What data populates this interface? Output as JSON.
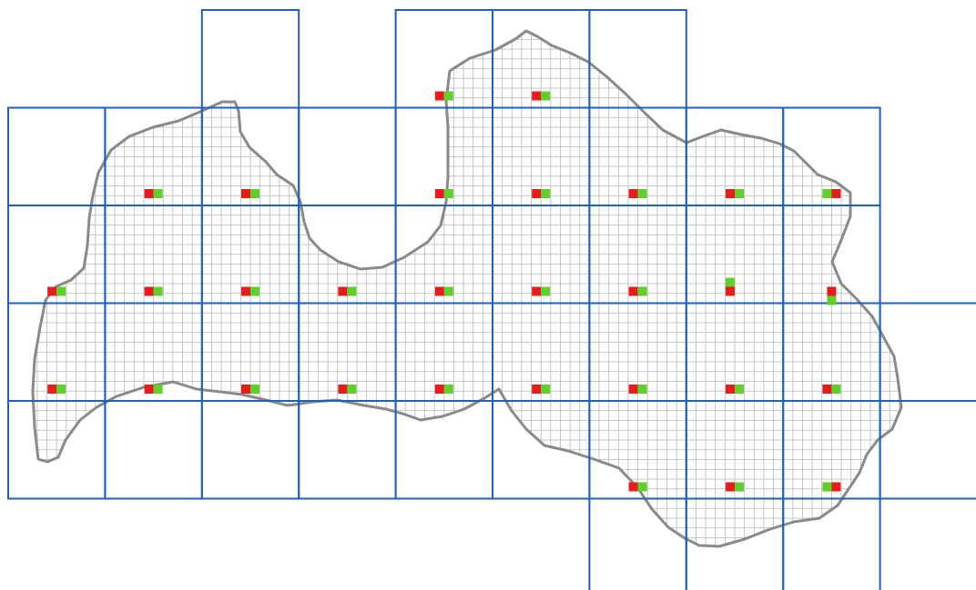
{
  "map": {
    "region": "Latvia",
    "coarse_grid": {
      "color": "#1f5fbf",
      "cells": [
        [
          2,
          0
        ],
        [
          4,
          0
        ],
        [
          5,
          0
        ],
        [
          6,
          0
        ],
        [
          0,
          1
        ],
        [
          1,
          1
        ],
        [
          2,
          1
        ],
        [
          3,
          1
        ],
        [
          4,
          1
        ],
        [
          5,
          1
        ],
        [
          6,
          1
        ],
        [
          7,
          1
        ],
        [
          8,
          1
        ],
        [
          0,
          2
        ],
        [
          1,
          2
        ],
        [
          2,
          2
        ],
        [
          3,
          2
        ],
        [
          4,
          2
        ],
        [
          5,
          2
        ],
        [
          6,
          2
        ],
        [
          7,
          2
        ],
        [
          8,
          2
        ],
        [
          0,
          3
        ],
        [
          1,
          3
        ],
        [
          2,
          3
        ],
        [
          3,
          3
        ],
        [
          4,
          3
        ],
        [
          5,
          3
        ],
        [
          6,
          3
        ],
        [
          7,
          3
        ],
        [
          8,
          3
        ],
        [
          9,
          3
        ],
        [
          0,
          4
        ],
        [
          1,
          4
        ],
        [
          2,
          4
        ],
        [
          3,
          4
        ],
        [
          4,
          4
        ],
        [
          5,
          4
        ],
        [
          6,
          4
        ],
        [
          7,
          4
        ],
        [
          8,
          4
        ],
        [
          9,
          4
        ],
        [
          6,
          5
        ],
        [
          7,
          5
        ],
        [
          8,
          5
        ]
      ]
    },
    "fine_grid": {
      "color": "#b8b8b8",
      "subdivisions_per_cell": 10
    },
    "boundary": {
      "color": "#8a8a8a"
    },
    "marker_colors": {
      "red": "#e81c1c",
      "green": "#5fd02a"
    },
    "markers": [
      {
        "id": "m-4-0",
        "col": 4,
        "row": 0,
        "layout": "red-left"
      },
      {
        "id": "m-5-0",
        "col": 5,
        "row": 0,
        "layout": "red-left"
      },
      {
        "id": "m-1-1",
        "col": 1,
        "row": 1,
        "layout": "red-left"
      },
      {
        "id": "m-2-1",
        "col": 2,
        "row": 1,
        "layout": "red-left"
      },
      {
        "id": "m-4-1",
        "col": 4,
        "row": 1,
        "layout": "red-left"
      },
      {
        "id": "m-5-1",
        "col": 5,
        "row": 1,
        "layout": "red-left"
      },
      {
        "id": "m-6-1",
        "col": 6,
        "row": 1,
        "layout": "red-left"
      },
      {
        "id": "m-7-1",
        "col": 7,
        "row": 1,
        "layout": "red-left"
      },
      {
        "id": "m-8-1",
        "col": 8,
        "row": 1,
        "layout": "green-left"
      },
      {
        "id": "m-0-2",
        "col": 0,
        "row": 2,
        "layout": "red-left"
      },
      {
        "id": "m-1-2",
        "col": 1,
        "row": 2,
        "layout": "red-left"
      },
      {
        "id": "m-2-2",
        "col": 2,
        "row": 2,
        "layout": "red-left"
      },
      {
        "id": "m-3-2",
        "col": 3,
        "row": 2,
        "layout": "red-left"
      },
      {
        "id": "m-4-2",
        "col": 4,
        "row": 2,
        "layout": "red-left"
      },
      {
        "id": "m-5-2",
        "col": 5,
        "row": 2,
        "layout": "red-left"
      },
      {
        "id": "m-6-2",
        "col": 6,
        "row": 2,
        "layout": "red-left"
      },
      {
        "id": "m-7-2",
        "col": 7,
        "row": 2,
        "layout": "green-top"
      },
      {
        "id": "m-8-2",
        "col": 8,
        "row": 2,
        "layout": "green-bottom"
      },
      {
        "id": "m-0-3",
        "col": 0,
        "row": 3,
        "layout": "red-left"
      },
      {
        "id": "m-1-3",
        "col": 1,
        "row": 3,
        "layout": "red-left"
      },
      {
        "id": "m-2-3",
        "col": 2,
        "row": 3,
        "layout": "red-left"
      },
      {
        "id": "m-3-3",
        "col": 3,
        "row": 3,
        "layout": "red-left"
      },
      {
        "id": "m-4-3",
        "col": 4,
        "row": 3,
        "layout": "red-left"
      },
      {
        "id": "m-5-3",
        "col": 5,
        "row": 3,
        "layout": "red-left"
      },
      {
        "id": "m-6-3",
        "col": 6,
        "row": 3,
        "layout": "red-left"
      },
      {
        "id": "m-7-3",
        "col": 7,
        "row": 3,
        "layout": "red-left"
      },
      {
        "id": "m-8-3",
        "col": 8,
        "row": 3,
        "layout": "red-left"
      },
      {
        "id": "m-6-4",
        "col": 6,
        "row": 4,
        "layout": "red-left"
      },
      {
        "id": "m-7-4",
        "col": 7,
        "row": 4,
        "layout": "red-left"
      },
      {
        "id": "m-8-4",
        "col": 8,
        "row": 4,
        "layout": "green-left"
      }
    ]
  }
}
